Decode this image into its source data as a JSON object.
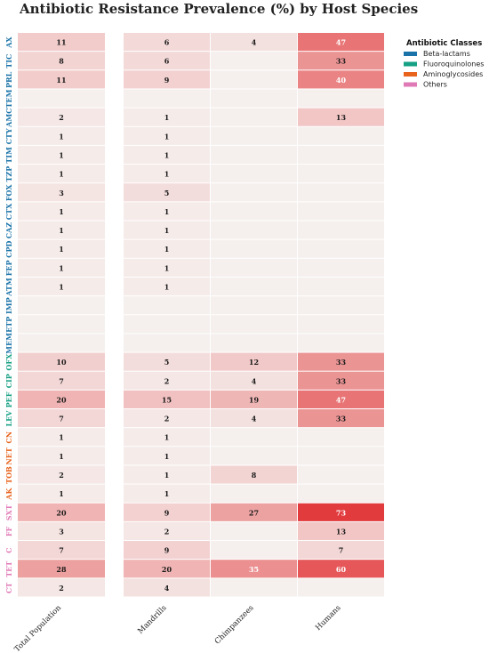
{
  "chart_data": {
    "type": "heatmap",
    "title": "Antibiotic Resistance Prevalence (%) by Host Species",
    "columns": [
      "Total Population",
      "Mandrills",
      "Chimpanzees",
      "Humans"
    ],
    "rows": [
      {
        "label": "AX",
        "class": "Beta-lactams",
        "values": [
          11,
          6,
          4,
          47
        ]
      },
      {
        "label": "TIC",
        "class": "Beta-lactams",
        "values": [
          8,
          6,
          0,
          33
        ]
      },
      {
        "label": "PRL",
        "class": "Beta-lactams",
        "values": [
          11,
          9,
          0,
          40
        ]
      },
      {
        "label": "TEM",
        "class": "Beta-lactams",
        "values": [
          0,
          0,
          0,
          0
        ]
      },
      {
        "label": "AMC",
        "class": "Beta-lactams",
        "values": [
          2,
          1,
          0,
          13
        ]
      },
      {
        "label": "CTY",
        "class": "Beta-lactams",
        "values": [
          1,
          1,
          0,
          0
        ]
      },
      {
        "label": "TIM",
        "class": "Beta-lactams",
        "values": [
          1,
          1,
          0,
          0
        ]
      },
      {
        "label": "TZP",
        "class": "Beta-lactams",
        "values": [
          1,
          1,
          0,
          0
        ]
      },
      {
        "label": "FOX",
        "class": "Beta-lactams",
        "values": [
          3,
          5,
          0,
          0
        ]
      },
      {
        "label": "CTX",
        "class": "Beta-lactams",
        "values": [
          1,
          1,
          0,
          0
        ]
      },
      {
        "label": "CAZ",
        "class": "Beta-lactams",
        "values": [
          1,
          1,
          0,
          0
        ]
      },
      {
        "label": "CPD",
        "class": "Beta-lactams",
        "values": [
          1,
          1,
          0,
          0
        ]
      },
      {
        "label": "FEP",
        "class": "Beta-lactams",
        "values": [
          1,
          1,
          0,
          0
        ]
      },
      {
        "label": "ATM",
        "class": "Beta-lactams",
        "values": [
          1,
          1,
          0,
          0
        ]
      },
      {
        "label": "IMP",
        "class": "Beta-lactams",
        "values": [
          0,
          0,
          0,
          0
        ]
      },
      {
        "label": "ETP",
        "class": "Beta-lactams",
        "values": [
          0,
          0,
          0,
          0
        ]
      },
      {
        "label": "MEM",
        "class": "Beta-lactams",
        "values": [
          0,
          0,
          0,
          0
        ]
      },
      {
        "label": "OFX",
        "class": "Fluoroquinolones",
        "values": [
          10,
          5,
          12,
          33
        ]
      },
      {
        "label": "CIP",
        "class": "Fluoroquinolones",
        "values": [
          7,
          2,
          4,
          33
        ]
      },
      {
        "label": "PEF",
        "class": "Fluoroquinolones",
        "values": [
          20,
          15,
          19,
          47
        ]
      },
      {
        "label": "LEV",
        "class": "Fluoroquinolones",
        "values": [
          7,
          2,
          4,
          33
        ]
      },
      {
        "label": "CN",
        "class": "Aminoglycosides",
        "values": [
          1,
          1,
          0,
          0
        ]
      },
      {
        "label": "NET",
        "class": "Aminoglycosides",
        "values": [
          1,
          1,
          0,
          0
        ]
      },
      {
        "label": "TOB",
        "class": "Aminoglycosides",
        "values": [
          2,
          1,
          8,
          0
        ]
      },
      {
        "label": "AK",
        "class": "Aminoglycosides",
        "values": [
          1,
          1,
          0,
          0
        ]
      },
      {
        "label": "SXT",
        "class": "Others",
        "values": [
          20,
          9,
          27,
          73
        ]
      },
      {
        "label": "FF",
        "class": "Others",
        "values": [
          3,
          2,
          0,
          13
        ]
      },
      {
        "label": "C",
        "class": "Others",
        "values": [
          7,
          9,
          0,
          7
        ]
      },
      {
        "label": "TET",
        "class": "Others",
        "values": [
          28,
          20,
          35,
          60
        ]
      },
      {
        "label": "CT",
        "class": "Others",
        "values": [
          2,
          4,
          0,
          0
        ]
      }
    ],
    "value_range": [
      0,
      73
    ],
    "zero_label_hidden": true,
    "legend": {
      "title": "Antibiotic Classes",
      "placement": "top-right",
      "entries": [
        {
          "name": "Beta-lactams",
          "color": "#1a73a8"
        },
        {
          "name": "Fluoroquinolones",
          "color": "#16a085"
        },
        {
          "name": "Aminoglycosides",
          "color": "#e8631c"
        },
        {
          "name": "Others",
          "color": "#e07ab6"
        }
      ]
    },
    "colors": {
      "low": "#f5f0ee",
      "high": "#e23b3e"
    }
  }
}
